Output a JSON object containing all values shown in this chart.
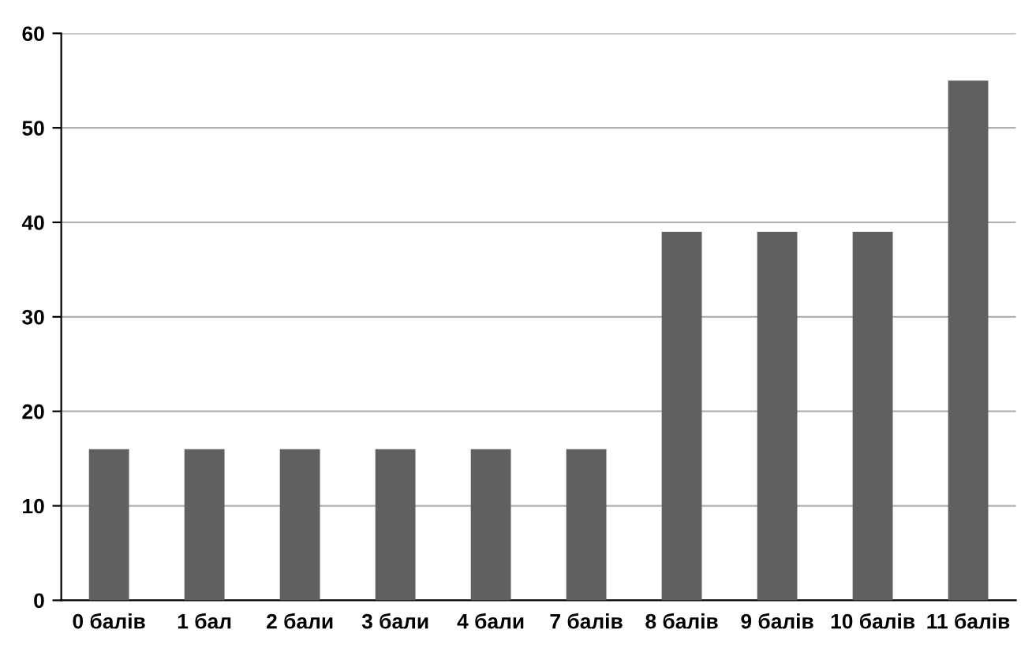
{
  "chart_data": {
    "type": "bar",
    "categories": [
      "0 балів",
      "1 бал",
      "2 бали",
      "3 бали",
      "4 бали",
      "7 балів",
      "8 балів",
      "9 балів",
      "10 балів",
      "11 балів"
    ],
    "values": [
      16,
      16,
      16,
      16,
      16,
      16,
      39,
      39,
      39,
      55
    ],
    "color": "#606060",
    "ylim": [
      0,
      60
    ],
    "yticks": [
      0,
      10,
      20,
      30,
      40,
      50,
      60
    ],
    "grid": "y",
    "legend": false
  }
}
